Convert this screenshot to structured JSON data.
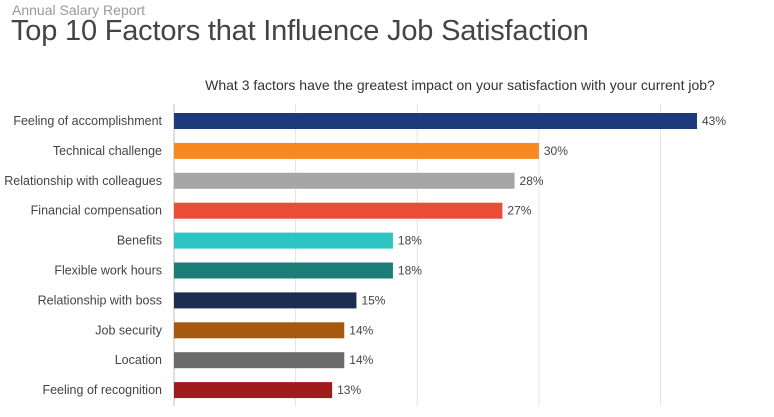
{
  "header": {
    "report_label": "Annual Salary Report",
    "title": "Top 10 Factors that Influence Job Satisfaction"
  },
  "chart_data": {
    "type": "bar",
    "orientation": "horizontal",
    "question": "What 3 factors have the greatest impact on your satisfaction with your current job?",
    "categories": [
      "Feeling of accomplishment",
      "Technical challenge",
      "Relationship with colleagues",
      "Financial compensation",
      "Benefits",
      "Flexible work hours",
      "Relationship with boss",
      "Job security",
      "Location",
      "Feeling of recognition"
    ],
    "values": [
      43,
      30,
      28,
      27,
      18,
      18,
      15,
      14,
      14,
      13
    ],
    "value_labels": [
      "43%",
      "30%",
      "28%",
      "27%",
      "18%",
      "18%",
      "15%",
      "14%",
      "14%",
      "13%"
    ],
    "colors": [
      "#1f3a7a",
      "#f7891f",
      "#a6a6a6",
      "#ea4c36",
      "#2ec4c1",
      "#1a7d78",
      "#1c2d4f",
      "#a55a10",
      "#6b6b6b",
      "#a01c1c"
    ],
    "xlim": [
      0,
      50
    ],
    "grid": true,
    "legend": "none"
  }
}
